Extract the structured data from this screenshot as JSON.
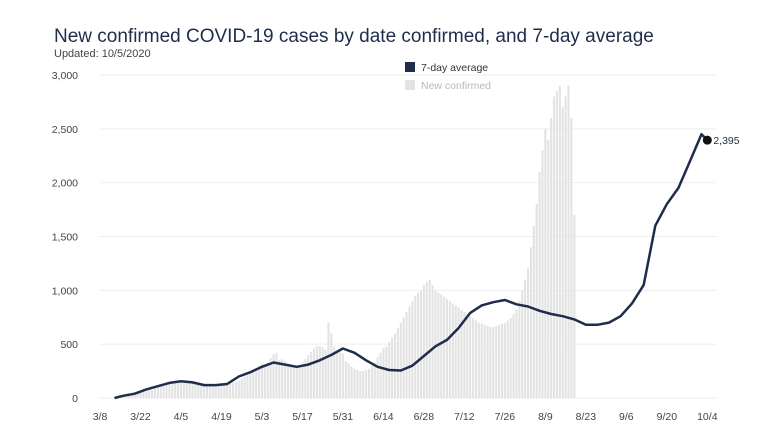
{
  "chart_data": {
    "type": "bar",
    "title": "New confirmed COVID-19 cases by date confirmed, and 7-day average",
    "subtitle": "Updated: 10/5/2020",
    "xlabel": "",
    "ylabel": "",
    "ylim": [
      0,
      3000
    ],
    "yticks": [
      0,
      500,
      1000,
      1500,
      2000,
      2500,
      3000
    ],
    "ytick_labels": [
      "0",
      "500",
      "1,000",
      "1,500",
      "2,000",
      "2,500",
      "3,000"
    ],
    "xtick_labels": [
      "3/8",
      "3/22",
      "4/5",
      "4/19",
      "5/3",
      "5/17",
      "5/31",
      "6/14",
      "6/28",
      "7/12",
      "7/26",
      "8/9",
      "8/23",
      "9/6",
      "9/20",
      "10/4"
    ],
    "xtick_dates": [
      "2020-03-08",
      "2020-03-22",
      "2020-04-05",
      "2020-04-19",
      "2020-05-03",
      "2020-05-17",
      "2020-05-31",
      "2020-06-14",
      "2020-06-28",
      "2020-07-12",
      "2020-07-26",
      "2020-08-09",
      "2020-08-23",
      "2020-09-06",
      "2020-09-20",
      "2020-10-04"
    ],
    "grid": true,
    "legend": "top-center",
    "series": [
      {
        "name": "7-day average",
        "type": "line",
        "color": "#1f2d4a",
        "points": [
          [
            "2020-03-13",
            0
          ],
          [
            "2020-03-16",
            20
          ],
          [
            "2020-03-20",
            40
          ],
          [
            "2020-03-24",
            80
          ],
          [
            "2020-03-28",
            110
          ],
          [
            "2020-04-01",
            140
          ],
          [
            "2020-04-05",
            155
          ],
          [
            "2020-04-09",
            145
          ],
          [
            "2020-04-13",
            120
          ],
          [
            "2020-04-17",
            120
          ],
          [
            "2020-04-21",
            130
          ],
          [
            "2020-04-25",
            200
          ],
          [
            "2020-04-29",
            240
          ],
          [
            "2020-05-03",
            290
          ],
          [
            "2020-05-07",
            330
          ],
          [
            "2020-05-11",
            310
          ],
          [
            "2020-05-15",
            290
          ],
          [
            "2020-05-19",
            310
          ],
          [
            "2020-05-23",
            350
          ],
          [
            "2020-05-27",
            400
          ],
          [
            "2020-05-31",
            460
          ],
          [
            "2020-06-04",
            420
          ],
          [
            "2020-06-08",
            350
          ],
          [
            "2020-06-12",
            290
          ],
          [
            "2020-06-16",
            260
          ],
          [
            "2020-06-20",
            255
          ],
          [
            "2020-06-24",
            300
          ],
          [
            "2020-06-28",
            390
          ],
          [
            "2020-07-02",
            480
          ],
          [
            "2020-07-06",
            540
          ],
          [
            "2020-07-10",
            650
          ],
          [
            "2020-07-14",
            790
          ],
          [
            "2020-07-18",
            860
          ],
          [
            "2020-07-22",
            890
          ],
          [
            "2020-07-26",
            910
          ],
          [
            "2020-07-30",
            870
          ],
          [
            "2020-08-03",
            850
          ],
          [
            "2020-08-07",
            810
          ],
          [
            "2020-08-11",
            780
          ],
          [
            "2020-08-15",
            760
          ],
          [
            "2020-08-19",
            730
          ],
          [
            "2020-08-23",
            680
          ],
          [
            "2020-08-27",
            680
          ],
          [
            "2020-08-31",
            700
          ],
          [
            "2020-09-04",
            760
          ],
          [
            "2020-09-08",
            880
          ],
          [
            "2020-09-12",
            1050
          ],
          [
            "2020-09-16",
            1600
          ],
          [
            "2020-09-20",
            1800
          ],
          [
            "2020-09-24",
            1950
          ],
          [
            "2020-09-28",
            2200
          ],
          [
            "2020-10-02",
            2450
          ],
          [
            "2020-10-04",
            2395
          ]
        ],
        "end_value": 2395,
        "end_label": "2,395"
      },
      {
        "name": "New confirmed",
        "type": "bar",
        "color": "#e3e3e3",
        "start_date": "2020-03-13",
        "values": [
          0,
          5,
          10,
          15,
          20,
          30,
          30,
          40,
          45,
          50,
          55,
          60,
          75,
          80,
          90,
          100,
          105,
          115,
          120,
          130,
          135,
          145,
          150,
          155,
          160,
          165,
          165,
          160,
          150,
          150,
          140,
          135,
          130,
          125,
          120,
          115,
          120,
          120,
          120,
          125,
          130,
          140,
          150,
          160,
          180,
          200,
          210,
          230,
          250,
          270,
          300,
          320,
          300,
          330,
          370,
          410,
          420,
          350,
          360,
          340,
          320,
          300,
          290,
          290,
          300,
          330,
          360,
          400,
          430,
          460,
          480,
          480,
          470,
          450,
          700,
          600,
          480,
          430,
          420,
          410,
          340,
          320,
          290,
          270,
          260,
          250,
          250,
          260,
          270,
          300,
          330,
          380,
          420,
          460,
          480,
          520,
          560,
          600,
          650,
          700,
          750,
          800,
          850,
          900,
          950,
          980,
          1000,
          1050,
          1080,
          1100,
          1050,
          1000,
          980,
          960,
          940,
          920,
          900,
          880,
          860,
          840,
          820,
          800,
          780,
          760,
          740,
          720,
          700,
          690,
          680,
          670,
          660,
          660,
          670,
          680,
          690,
          700,
          720,
          740,
          780,
          820,
          900,
          1000,
          1100,
          1200,
          1400,
          1600,
          1800,
          2100,
          2300,
          2500,
          2400,
          2600,
          2800,
          2850,
          2900,
          2700,
          2800,
          2900,
          2600,
          1700
        ]
      }
    ]
  }
}
